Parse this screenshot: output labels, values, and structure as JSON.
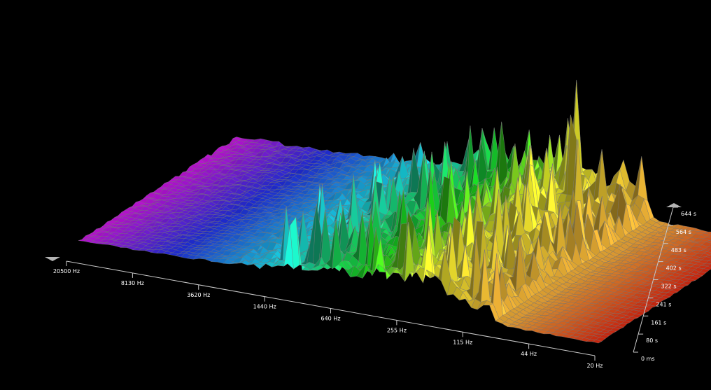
{
  "chart_data": {
    "type": "waterfall-3d",
    "x_axis": {
      "ticks": [
        "20500 Hz",
        "8130 Hz",
        "3620 Hz",
        "1440 Hz",
        "640 Hz",
        "255 Hz",
        "115 Hz",
        "44 Hz",
        "20 Hz"
      ]
    },
    "y_axis": {
      "ticks": [
        "0 ms",
        "80 s",
        "161 s",
        "241 s",
        "322 s",
        "402 s",
        "483 s",
        "564 s",
        "644 s"
      ]
    },
    "colors": {
      "background": "#000000",
      "axis": "#c8c8c8",
      "mesh": "#7a7a7a"
    },
    "gradient": [
      "#d012e6",
      "#2230e8",
      "#18d8ee",
      "#18d818",
      "#e8f028",
      "#f0a838",
      "#e02810"
    ]
  }
}
